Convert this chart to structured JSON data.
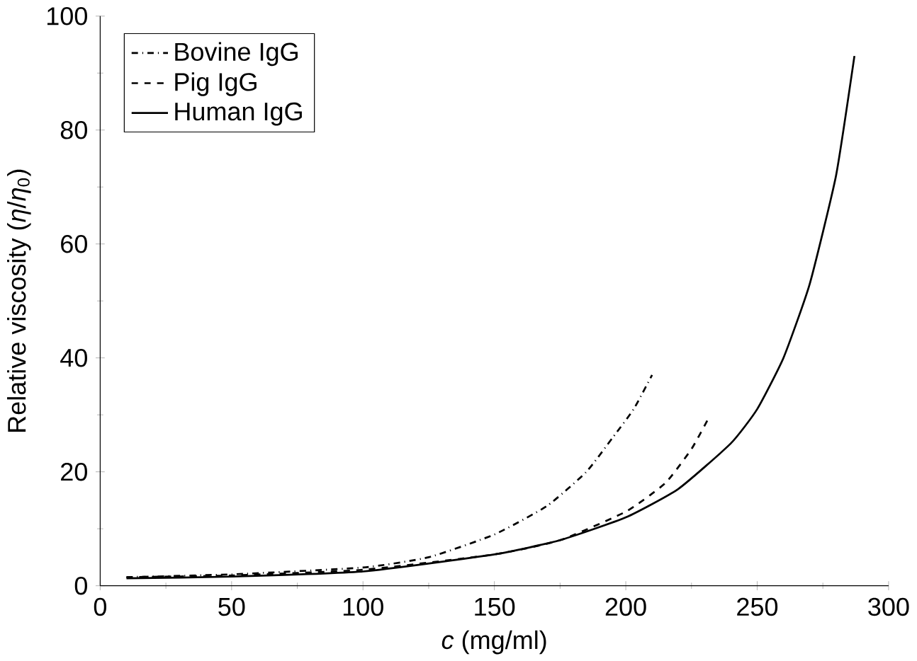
{
  "chart_data": {
    "type": "line",
    "xlabel": "*c* (mg/ml)",
    "ylabel": "Relative viscosity (*η*/*η*$_{0}$)",
    "xlim": [
      0,
      300
    ],
    "xticks": [
      0,
      50,
      100,
      150,
      200,
      250,
      300
    ],
    "ylim": [
      0,
      100
    ],
    "yticks": [
      0,
      20,
      40,
      60,
      80,
      100
    ],
    "grid": false,
    "legend": "top left",
    "marker": "none",
    "series": [
      {
        "name": "Bovine IgG",
        "color": "#000000",
        "line_style": "dashdot",
        "x": [
          10,
          50,
          100,
          125,
          150,
          170,
          185,
          195,
          203,
          210
        ],
        "values": [
          1.5,
          2,
          3.2,
          5,
          9,
          14,
          20,
          26,
          31,
          37
        ]
      },
      {
        "name": "Pig IgG",
        "color": "#000000",
        "line_style": "dashed",
        "x": [
          10,
          50,
          100,
          150,
          175,
          200,
          215,
          225,
          231
        ],
        "values": [
          1.5,
          1.8,
          2.8,
          5.5,
          8,
          13,
          18,
          24,
          29
        ]
      },
      {
        "name": "Human IgG",
        "color": "#000000",
        "line_style": "solid",
        "x": [
          10,
          50,
          100,
          150,
          175,
          200,
          220,
          240,
          250,
          260,
          270,
          280,
          287
        ],
        "values": [
          1.3,
          1.6,
          2.5,
          5.5,
          8,
          12,
          17,
          25,
          31,
          40,
          53,
          72,
          93
        ]
      }
    ]
  }
}
